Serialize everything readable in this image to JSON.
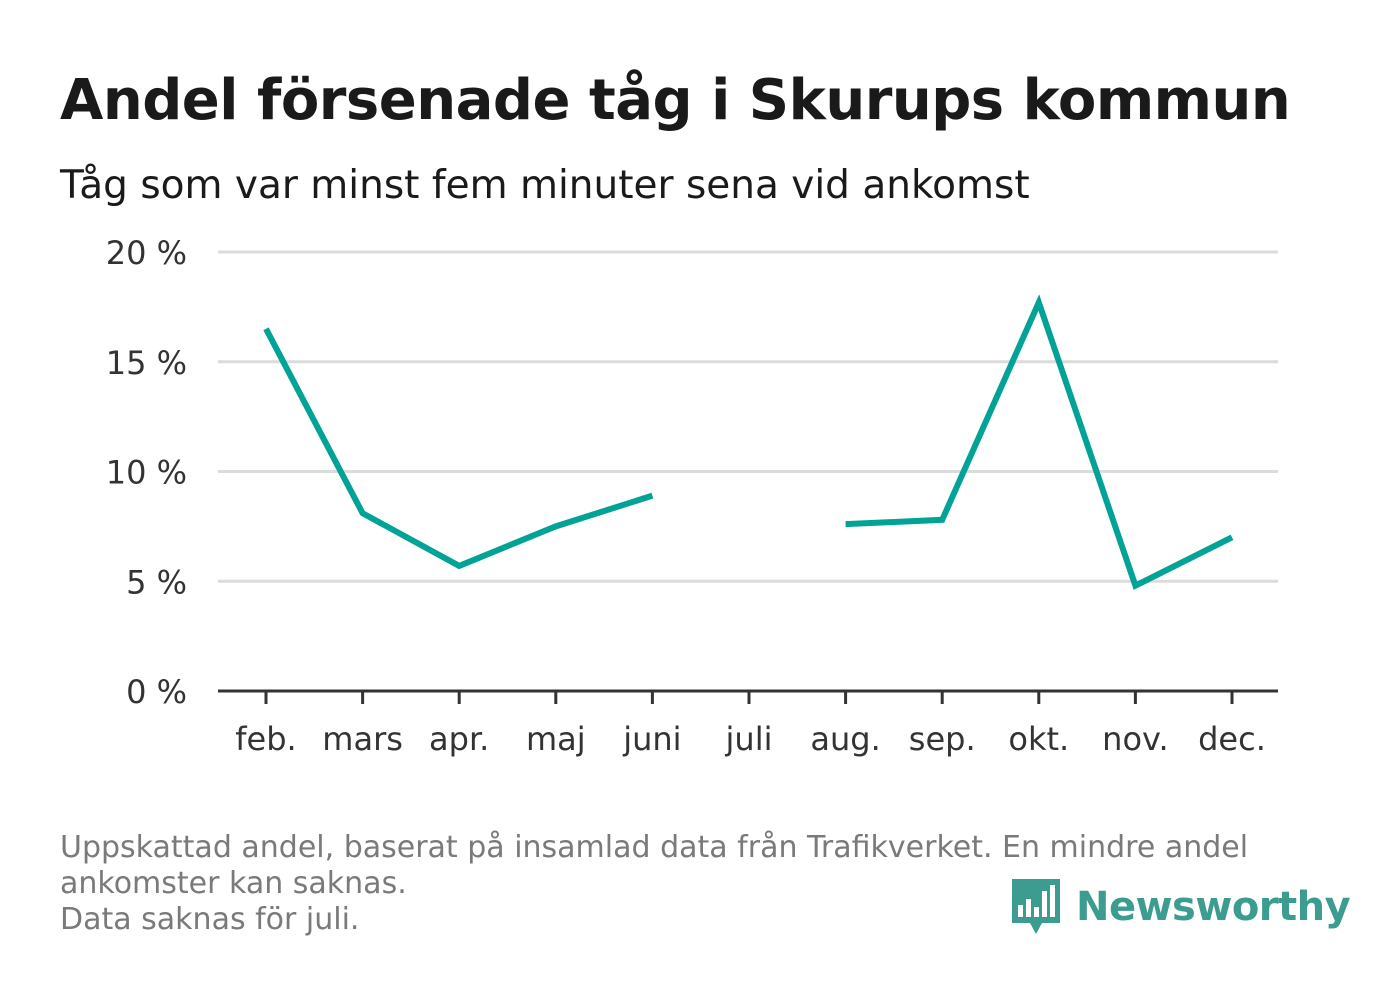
{
  "title": "Andel försenade tåg i Skurups kommun",
  "subtitle": "Tåg som var minst fem minuter sena vid ankomst",
  "footnote": {
    "line1": "Uppskattad andel, baserat på insamlad data från Trafikverket. En mindre andel",
    "line2": "ankomster kan saknas.",
    "line3": "Data saknas för juli."
  },
  "brand": {
    "name": "Newsworthy",
    "icon": "bar-chart-speech-bubble-icon",
    "color": "#3b9c8f"
  },
  "chart_data": {
    "type": "line",
    "categories": [
      "feb.",
      "mars",
      "apr.",
      "maj",
      "juni",
      "juli",
      "aug.",
      "sep.",
      "okt.",
      "nov.",
      "dec."
    ],
    "series": [
      {
        "values": [
          16.5,
          8.1,
          5.7,
          7.5,
          8.9,
          null,
          7.6,
          7.8,
          17.7,
          4.8,
          7.0
        ],
        "color": "#00a396"
      }
    ],
    "ylim": [
      0,
      20
    ],
    "yticks": [
      0,
      5,
      10,
      15,
      20
    ],
    "ytick_labels": [
      "0 %",
      "5 %",
      "10 %",
      "15 %",
      "20 %"
    ],
    "grid": true,
    "xlabel": "",
    "ylabel": ""
  }
}
